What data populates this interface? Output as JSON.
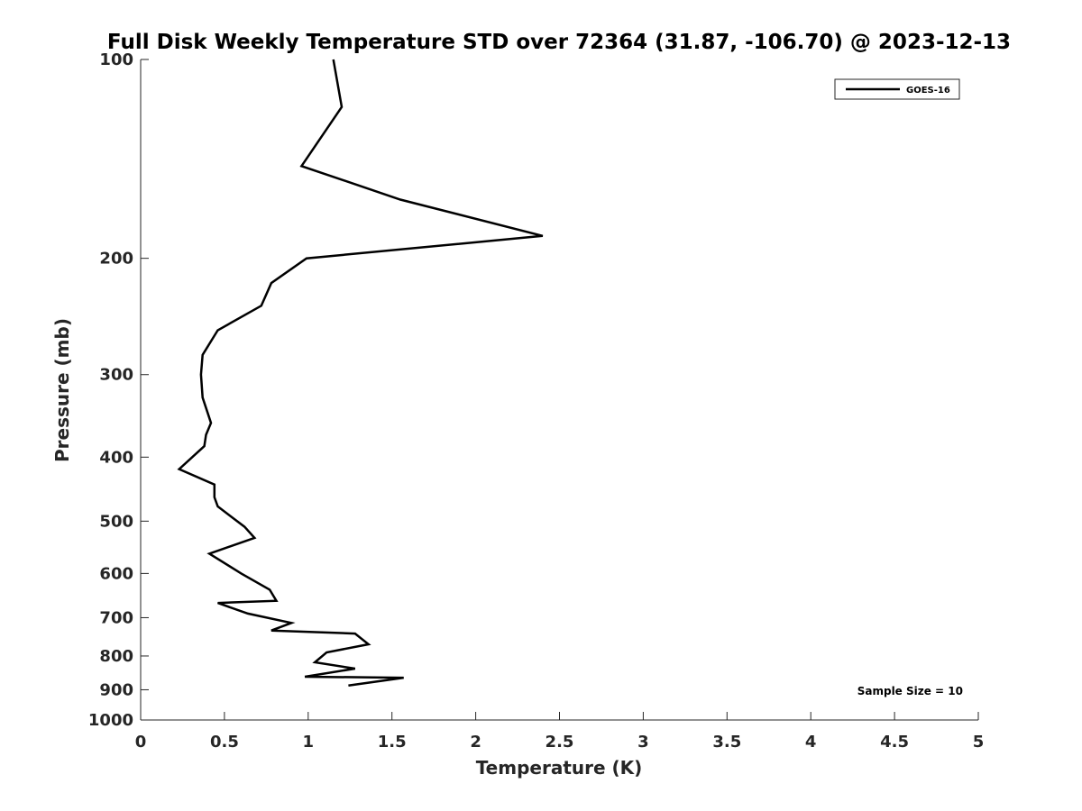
{
  "chart_data": {
    "type": "line",
    "title": "Full Disk Weekly Temperature STD over 72364 (31.87, -106.70) @ 2023-12-13",
    "xlabel": "Temperature (K)",
    "ylabel": "Pressure (mb)",
    "xlim": [
      0,
      5
    ],
    "ylim": [
      100,
      1000
    ],
    "yscale": "log",
    "y_reversed": true,
    "x_ticks": [
      "0",
      "0.5",
      "1",
      "1.5",
      "2",
      "2.5",
      "3",
      "3.5",
      "4",
      "4.5",
      "5"
    ],
    "y_ticks": [
      "100",
      "200",
      "300",
      "400",
      "500",
      "600",
      "700",
      "800",
      "900",
      "1000"
    ],
    "grid": false,
    "legend_position": "top-right",
    "annotation": "Sample Size = 10",
    "series": [
      {
        "name": "GOES-16",
        "color": "#000000",
        "x": [
          1.15,
          1.2,
          0.96,
          1.55,
          2.4,
          0.99,
          0.78,
          0.72,
          0.46,
          0.37,
          0.36,
          0.37,
          0.42,
          0.39,
          0.38,
          0.23,
          0.44,
          0.44,
          0.46,
          0.62,
          0.68,
          0.41,
          0.6,
          0.77,
          0.81,
          0.46,
          0.64,
          0.9,
          0.78,
          1.28,
          1.36,
          1.11,
          1.04,
          1.28,
          0.98,
          1.57,
          1.24
        ],
        "y": [
          100,
          118,
          145,
          163,
          185,
          200,
          218,
          236,
          257,
          280,
          300,
          325,
          355,
          370,
          385,
          417,
          440,
          460,
          475,
          510,
          530,
          560,
          600,
          635,
          660,
          665,
          690,
          713,
          732,
          740,
          768,
          790,
          818,
          836,
          860,
          863,
          887
        ]
      }
    ]
  }
}
